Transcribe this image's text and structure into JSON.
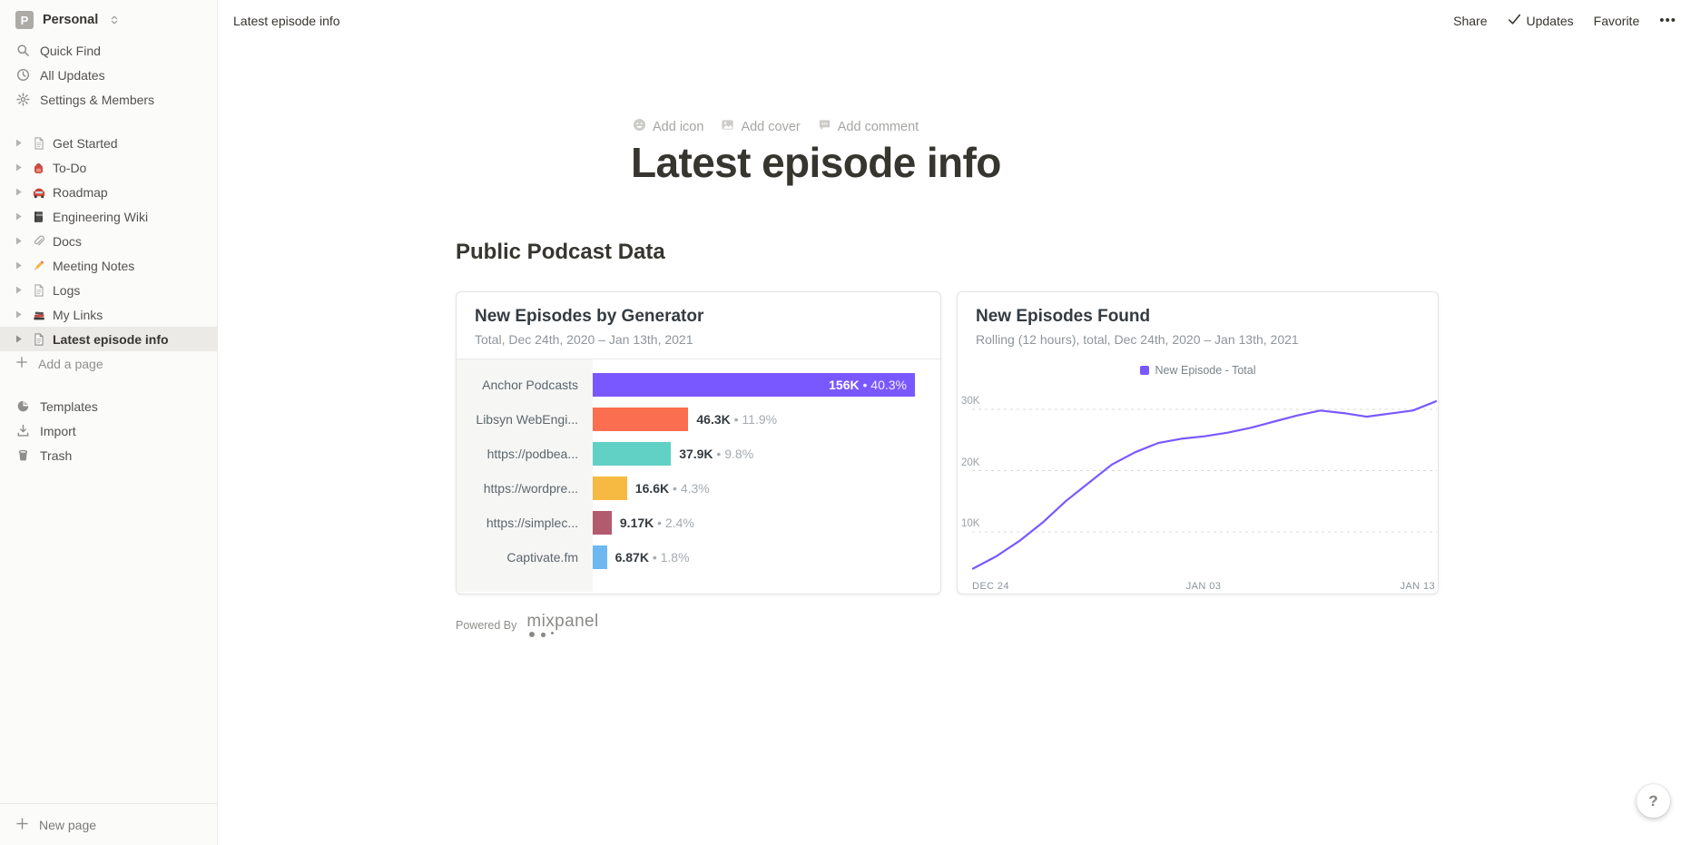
{
  "sidebar": {
    "workspace": {
      "initial": "P",
      "name": "Personal"
    },
    "top_items": [
      {
        "icon": "search-icon",
        "label": "Quick Find"
      },
      {
        "icon": "clock-icon",
        "label": "All Updates"
      },
      {
        "icon": "gear-icon",
        "label": "Settings & Members"
      }
    ],
    "pages": [
      {
        "icon": "page-icon",
        "label": "Get Started",
        "selected": false
      },
      {
        "icon": "backpack-icon",
        "label": "To-Do",
        "selected": false
      },
      {
        "icon": "car-icon",
        "label": "Roadmap",
        "selected": false
      },
      {
        "icon": "notebook-icon",
        "label": "Engineering Wiki",
        "selected": false
      },
      {
        "icon": "paperclip-icon",
        "label": "Docs",
        "selected": false
      },
      {
        "icon": "pencil-icon",
        "label": "Meeting Notes",
        "selected": false
      },
      {
        "icon": "page-icon",
        "label": "Logs",
        "selected": false
      },
      {
        "icon": "books-icon",
        "label": "My Links",
        "selected": false
      },
      {
        "icon": "page-icon",
        "label": "Latest episode info",
        "selected": true
      }
    ],
    "add_page_label": "Add a page",
    "bottom_items": [
      {
        "icon": "templates-icon",
        "label": "Templates"
      },
      {
        "icon": "import-icon",
        "label": "Import"
      },
      {
        "icon": "trash-icon",
        "label": "Trash"
      }
    ],
    "new_page_label": "New page"
  },
  "topbar": {
    "breadcrumb": "Latest episode info",
    "share_label": "Share",
    "updates_label": "Updates",
    "favorite_label": "Favorite",
    "more_icon": "•••"
  },
  "page": {
    "controls": [
      {
        "icon": "smiley-icon",
        "label": "Add icon"
      },
      {
        "icon": "image-icon",
        "label": "Add cover"
      },
      {
        "icon": "comment-icon",
        "label": "Add comment"
      }
    ],
    "title": "Latest episode info",
    "section_heading": "Public Podcast Data",
    "powered_by_label": "Powered By",
    "mixpanel_wordmark": "mixpanel",
    "help_label": "?"
  },
  "chart_data": [
    {
      "type": "bar",
      "orientation": "horizontal",
      "title": "New Episodes by Generator",
      "subtitle": "Total, Dec 24th, 2020 – Jan 13th, 2021",
      "categories": [
        "Anchor Podcasts",
        "Libsyn WebEngi...",
        "https://podbea...",
        "https://wordpre...",
        "https://simplec...",
        "Captivate.fm"
      ],
      "values": [
        156000,
        46300,
        37900,
        16600,
        9170,
        6870
      ],
      "values_display": [
        "156K",
        "46.3K",
        "37.9K",
        "16.6K",
        "9.17K",
        "6.87K"
      ],
      "percents": [
        "40.3%",
        "11.9%",
        "9.8%",
        "4.3%",
        "2.4%",
        "1.8%"
      ],
      "colors": [
        "#7A58FF",
        "#FB6E4F",
        "#61D0C5",
        "#F6BA43",
        "#B25B6E",
        "#6DB8F0"
      ],
      "separator": "•",
      "max_value": 156000,
      "label_column_header": ""
    },
    {
      "type": "line",
      "title": "New Episodes Found",
      "subtitle": "Rolling (12 hours), total, Dec 24th, 2020 – Jan 13th, 2021",
      "grid": "dashed-horizontal",
      "legend_position": "top",
      "x": [
        "Dec 24",
        "Dec 25",
        "Dec 26",
        "Dec 27",
        "Dec 28",
        "Dec 29",
        "Dec 30",
        "Dec 31",
        "Jan 01",
        "Jan 02",
        "Jan 03",
        "Jan 04",
        "Jan 05",
        "Jan 06",
        "Jan 07",
        "Jan 08",
        "Jan 09",
        "Jan 10",
        "Jan 11",
        "Jan 12",
        "Jan 13"
      ],
      "x_ticks": [
        "DEC 24",
        "JAN 03",
        "JAN 13"
      ],
      "y_ticks": [
        {
          "label": "30K",
          "value": 30000
        },
        {
          "label": "20K",
          "value": 20000
        },
        {
          "label": "10K",
          "value": 10000
        }
      ],
      "ylim": [
        0,
        35000
      ],
      "series": [
        {
          "name": "New Episode - Total",
          "color": "#7A58FF",
          "values": [
            4000,
            6000,
            8500,
            11500,
            15000,
            18000,
            21000,
            23000,
            24500,
            25200,
            25600,
            26200,
            27000,
            28000,
            29000,
            29800,
            29400,
            28800,
            29300,
            29800,
            31300
          ]
        }
      ]
    }
  ]
}
